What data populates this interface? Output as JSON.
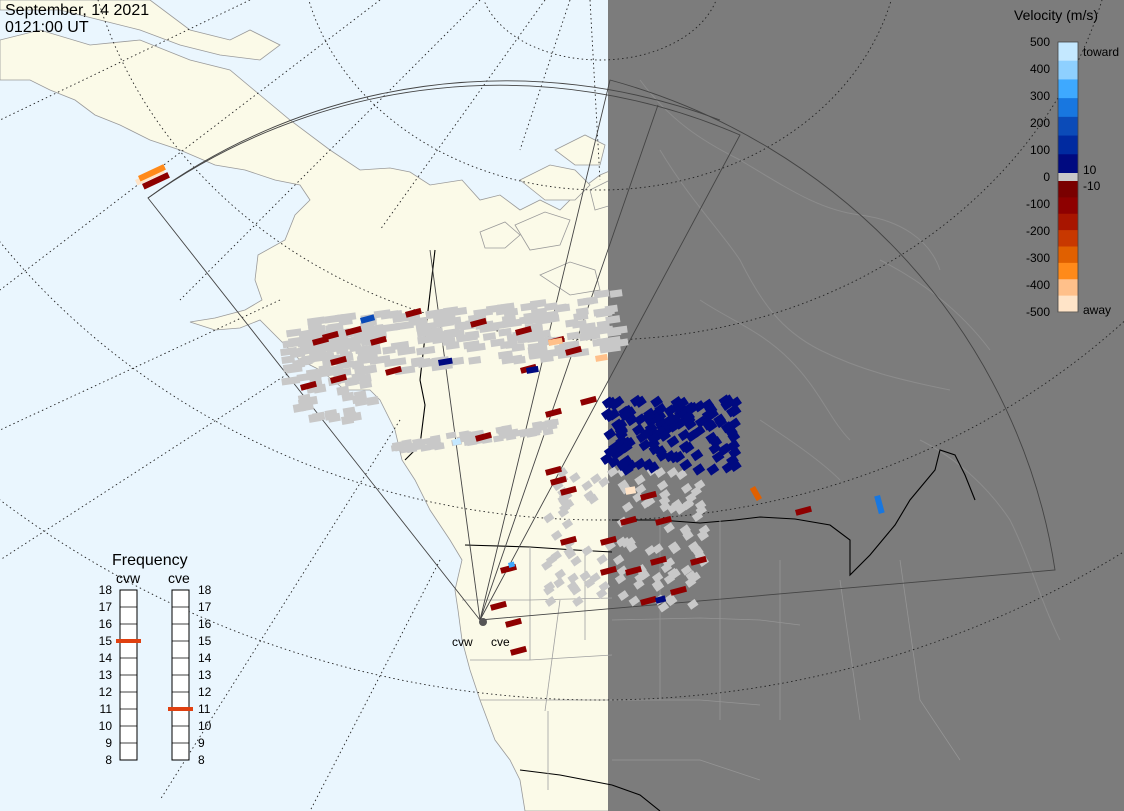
{
  "header": {
    "date": "September, 14 2021",
    "time": "0121:00 UT"
  },
  "velocity_scale": {
    "title": "Velocity (m/s)",
    "ticks": [
      "500",
      "400",
      "300",
      "200",
      "100",
      "0",
      "-100",
      "-200",
      "-300",
      "-400",
      "-500"
    ],
    "toward_label": "toward",
    "away_label": "away",
    "threshold_pos": "10",
    "threshold_neg": "-10",
    "colors": {
      "toward": [
        "#c4e8ff",
        "#8ed0ff",
        "#3ea9ff",
        "#1877e0",
        "#0b4bb8",
        "#002aa0",
        "#000a80"
      ],
      "away": [
        "#7a0000",
        "#8e0000",
        "#a81500",
        "#c83800",
        "#e06000",
        "#ff8a1a",
        "#ffc08a",
        "#ffe4c8"
      ],
      "ground_scatter": "#c8c8c8"
    }
  },
  "frequency": {
    "title": "Frequency",
    "radar_left": "cvw",
    "radar_right": "cve",
    "scale": [
      "18",
      "17",
      "16",
      "15",
      "14",
      "13",
      "12",
      "11",
      "10",
      "9",
      "8"
    ],
    "left_value_mhz": 15,
    "right_value_mhz": 11,
    "indicator_color": "#e04010"
  },
  "map": {
    "radar_labels": [
      "cvw",
      "cve"
    ],
    "ocean_color": "#eaf6fe",
    "land_color": "#fbfae8",
    "night_color": "#7c7c7c"
  }
}
